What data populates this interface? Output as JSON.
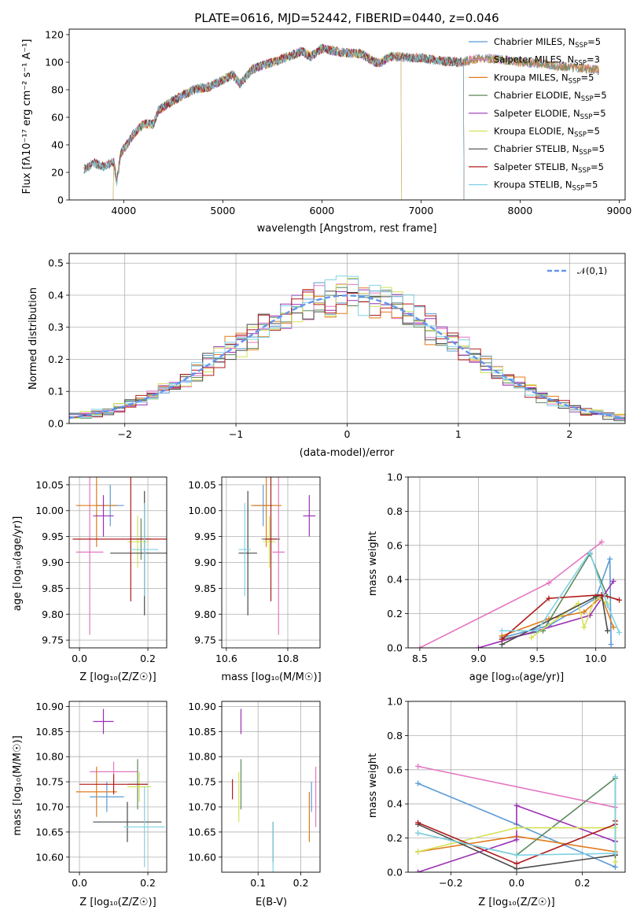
{
  "colors": {
    "Chabrier MILES": "#5b9bd5",
    "Salpeter MILES": "#e377c2",
    "Kroupa MILES": "#e07b1a",
    "Chabrier ELODIE": "#5e8a5e",
    "Salpeter ELODIE": "#9b30b5",
    "Kroupa ELODIE": "#d4e157",
    "Chabrier STELIB": "#4a4a4a",
    "Salpeter STELIB": "#b01c1c",
    "Kroupa STELIB": "#7fd3e3",
    "gauss": "#6495ed"
  },
  "chart_data": [
    {
      "id": "spectrum",
      "type": "line",
      "title": "PLATE=0616, MJD=52442, FIBERID=0440, z=0.046",
      "xlabel": "wavelength [Angstrom, rest frame]",
      "ylabel": "Flux [fλ10⁻¹⁷ erg cm⁻² s⁻¹ A⁻¹]",
      "xlim": [
        3450,
        9060
      ],
      "ylim": [
        0,
        124
      ],
      "xticks": [
        4000,
        5000,
        6000,
        7000,
        8000,
        9000
      ],
      "yticks": [
        0,
        20,
        40,
        60,
        80,
        100,
        120
      ],
      "grid": false,
      "legend_position": "top-right",
      "legend": [
        {
          "model": "Chabrier MILES",
          "label": "Chabrier MILES, N",
          "sub": "SSP",
          "n": "=5"
        },
        {
          "model": "Salpeter MILES",
          "label": "Salpeter MILES, N",
          "sub": "SSP",
          "n": "=3"
        },
        {
          "model": "Kroupa MILES",
          "label": "Kroupa MILES, N",
          "sub": "SSP",
          "n": "=5"
        },
        {
          "model": "Chabrier ELODIE",
          "label": "Chabrier ELODIE, N",
          "sub": "SSP",
          "n": "=5"
        },
        {
          "model": "Salpeter ELODIE",
          "label": "Salpeter ELODIE, N",
          "sub": "SSP",
          "n": "=5"
        },
        {
          "model": "Kroupa ELODIE",
          "label": "Kroupa ELODIE, N",
          "sub": "SSP",
          "n": "=5"
        },
        {
          "model": "Chabrier STELIB",
          "label": "Chabrier STELIB, N",
          "sub": "SSP",
          "n": "=5"
        },
        {
          "model": "Salpeter STELIB",
          "label": "Salpeter STELIB, N",
          "sub": "SSP",
          "n": "=5"
        },
        {
          "model": "Kroupa STELIB",
          "label": "Kroupa STELIB, N",
          "sub": "SSP",
          "n": "=5"
        }
      ],
      "continuum": [
        [
          3600,
          22
        ],
        [
          3700,
          27
        ],
        [
          3800,
          24
        ],
        [
          3900,
          28
        ],
        [
          3930,
          13
        ],
        [
          3970,
          34
        ],
        [
          4050,
          42
        ],
        [
          4100,
          48
        ],
        [
          4200,
          55
        ],
        [
          4300,
          55
        ],
        [
          4350,
          65
        ],
        [
          4500,
          72
        ],
        [
          4700,
          80
        ],
        [
          4860,
          82
        ],
        [
          5000,
          87
        ],
        [
          5100,
          91
        ],
        [
          5175,
          84
        ],
        [
          5300,
          95
        ],
        [
          5500,
          100
        ],
        [
          5700,
          105
        ],
        [
          5800,
          108
        ],
        [
          5890,
          104
        ],
        [
          6000,
          110
        ],
        [
          6200,
          107
        ],
        [
          6400,
          106
        ],
        [
          6563,
          99
        ],
        [
          6700,
          104
        ],
        [
          7000,
          103
        ],
        [
          7200,
          101
        ],
        [
          7400,
          100
        ],
        [
          7600,
          103
        ],
        [
          7800,
          102
        ],
        [
          8000,
          100
        ],
        [
          8200,
          99
        ],
        [
          8400,
          97
        ],
        [
          8600,
          96
        ],
        [
          8800,
          94
        ]
      ],
      "spectrum_range": [
        3600,
        8800
      ],
      "model_cutoffs": [
        {
          "model": "Kroupa ELODIE",
          "range": [
            3900,
            6800
          ]
        },
        {
          "model": "Salpeter ELODIE",
          "range": [
            3900,
            6800
          ]
        },
        {
          "model": "Chabrier STELIB",
          "range": [
            3600,
            7430
          ]
        },
        {
          "model": "Salpeter STELIB",
          "range": [
            3600,
            7430
          ]
        },
        {
          "model": "Kroupa STELIB",
          "range": [
            3600,
            7430
          ]
        }
      ]
    },
    {
      "id": "residuals",
      "type": "line",
      "xlabel": "(data-model)/error",
      "ylabel": "Normed distribution",
      "xlim": [
        -2.5,
        2.5
      ],
      "ylim": [
        0,
        0.53
      ],
      "xticks": [
        -2,
        -1,
        0,
        1,
        2
      ],
      "yticks": [
        0.0,
        0.1,
        0.2,
        0.3,
        0.4,
        0.5
      ],
      "grid": true,
      "legend_position": "top-right",
      "legend_label": "𝒩(0,1)",
      "bin_edges_start": -2.5,
      "bin_width": 0.1,
      "n_bins": 50,
      "reference": "gaussian mean 0 sigma 1 (dashed)"
    },
    {
      "id": "age-vs-Z",
      "type": "scatter",
      "xlabel": "Z [log₁₀(Z/Z☉)]",
      "ylabel": "age  [log₁₀(age/yr)]",
      "xlim": [
        -0.03,
        0.255
      ],
      "ylim": [
        9.735,
        10.065
      ],
      "xticks": [
        0.0,
        0.2
      ],
      "yticks": [
        9.75,
        9.8,
        9.85,
        9.9,
        9.95,
        10.0,
        10.05
      ],
      "grid": true,
      "points": [
        {
          "model": "Chabrier MILES",
          "x": 0.09,
          "y": 10.01,
          "xerr": 0.04,
          "yerr": 0.04
        },
        {
          "model": "Salpeter MILES",
          "x": 0.03,
          "y": 9.92,
          "xerr": 0.04,
          "yerr": 0.16
        },
        {
          "model": "Kroupa MILES",
          "x": 0.05,
          "y": 10.01,
          "xerr": 0.06,
          "yerr": 0.08
        },
        {
          "model": "Chabrier ELODIE",
          "x": 0.18,
          "y": 9.945,
          "xerr": 0.03,
          "yerr": 0.04
        },
        {
          "model": "Salpeter ELODIE",
          "x": 0.07,
          "y": 9.99,
          "xerr": 0.03,
          "yerr": 0.04
        },
        {
          "model": "Kroupa ELODIE",
          "x": 0.17,
          "y": 9.94,
          "xerr": 0.03,
          "yerr": 0.05
        },
        {
          "model": "Chabrier STELIB",
          "x": 0.19,
          "y": 9.918,
          "xerr": 0.1,
          "yerr": 0.12
        },
        {
          "model": "Salpeter STELIB",
          "x": 0.15,
          "y": 9.945,
          "xerr": 0.17,
          "yerr": 0.12
        },
        {
          "model": "Kroupa STELIB",
          "x": 0.19,
          "y": 9.925,
          "xerr": 0.04,
          "yerr": 0.09
        }
      ]
    },
    {
      "id": "age-vs-mass",
      "type": "scatter",
      "xlabel": "mass [log₁₀(M/M☉)]",
      "ylabel": "",
      "xlim": [
        10.585,
        10.905
      ],
      "ylim": [
        9.735,
        10.065
      ],
      "xticks": [
        10.6,
        10.8
      ],
      "yticks": [
        9.75,
        9.8,
        9.85,
        9.9,
        9.95,
        10.0,
        10.05
      ],
      "grid": true,
      "points": [
        {
          "model": "Chabrier MILES",
          "x": 10.72,
          "y": 10.01,
          "xerr": 0.03,
          "yerr": 0.04
        },
        {
          "model": "Salpeter MILES",
          "x": 10.77,
          "y": 9.92,
          "xerr": 0.02,
          "yerr": 0.16
        },
        {
          "model": "Kroupa MILES",
          "x": 10.73,
          "y": 10.01,
          "xerr": 0.05,
          "yerr": 0.08
        },
        {
          "model": "Chabrier ELODIE",
          "x": 10.745,
          "y": 9.945,
          "xerr": 0.03,
          "yerr": 0.04
        },
        {
          "model": "Salpeter ELODIE",
          "x": 10.87,
          "y": 9.99,
          "xerr": 0.02,
          "yerr": 0.04
        },
        {
          "model": "Kroupa ELODIE",
          "x": 10.74,
          "y": 9.94,
          "xerr": 0.02,
          "yerr": 0.05
        },
        {
          "model": "Chabrier STELIB",
          "x": 10.67,
          "y": 9.918,
          "xerr": 0.03,
          "yerr": 0.12
        },
        {
          "model": "Salpeter STELIB",
          "x": 10.745,
          "y": 9.945,
          "xerr": 0.02,
          "yerr": 0.12
        },
        {
          "model": "Kroupa STELIB",
          "x": 10.66,
          "y": 9.925,
          "xerr": 0.02,
          "yerr": 0.09
        }
      ]
    },
    {
      "id": "mass-weight-vs-age",
      "type": "line",
      "xlabel": "age  [log₁₀(age/yr)]",
      "ylabel": "mass weight",
      "xlim": [
        8.4,
        10.25
      ],
      "ylim": [
        0,
        1
      ],
      "xticks": [
        8.5,
        9.0,
        9.5,
        10.0
      ],
      "yticks": [
        0.0,
        0.2,
        0.4,
        0.6,
        0.8,
        1.0
      ],
      "grid": true,
      "series": [
        {
          "model": "Chabrier MILES",
          "x": [
            9.2,
            9.6,
            10.0,
            10.12,
            10.13
          ],
          "y": [
            0.06,
            0.13,
            0.29,
            0.52,
            0.02
          ]
        },
        {
          "model": "Salpeter MILES",
          "x": [
            8.5,
            9.6,
            10.05
          ],
          "y": [
            0.0,
            0.38,
            0.62
          ]
        },
        {
          "model": "Kroupa MILES",
          "x": [
            9.2,
            9.6,
            9.9,
            10.05,
            10.15
          ],
          "y": [
            0.07,
            0.17,
            0.21,
            0.3,
            0.12
          ]
        },
        {
          "model": "Chabrier ELODIE",
          "x": [
            9.2,
            9.55,
            9.95,
            10.1
          ],
          "y": [
            0.05,
            0.1,
            0.55,
            0.3
          ]
        },
        {
          "model": "Salpeter ELODIE",
          "x": [
            9.0,
            9.95,
            10.15
          ],
          "y": [
            0.0,
            0.19,
            0.39
          ]
        },
        {
          "model": "Kroupa ELODIE",
          "x": [
            9.45,
            9.85,
            9.9,
            10.0,
            10.1
          ],
          "y": [
            0.06,
            0.26,
            0.12,
            0.3,
            0.26
          ]
        },
        {
          "model": "Chabrier STELIB",
          "x": [
            9.2,
            10.0,
            10.05,
            10.1
          ],
          "y": [
            0.02,
            0.3,
            0.31,
            0.1
          ]
        },
        {
          "model": "Salpeter STELIB",
          "x": [
            9.2,
            9.6,
            10.05,
            10.2
          ],
          "y": [
            0.05,
            0.29,
            0.31,
            0.28
          ]
        },
        {
          "model": "Kroupa STELIB",
          "x": [
            9.2,
            9.5,
            9.95,
            10.1,
            10.2
          ],
          "y": [
            0.1,
            0.1,
            0.56,
            0.25,
            0.09
          ]
        }
      ]
    },
    {
      "id": "mass-vs-Z",
      "type": "scatter",
      "xlabel": "Z [log₁₀(Z/Z☉)]",
      "ylabel": "mass [log₁₀(M/M☉)]",
      "xlim": [
        -0.03,
        0.255
      ],
      "ylim": [
        10.57,
        10.91
      ],
      "xticks": [
        0.0,
        0.2
      ],
      "yticks": [
        10.6,
        10.65,
        10.7,
        10.75,
        10.8,
        10.85,
        10.9
      ],
      "grid": true,
      "points": [
        {
          "model": "Chabrier MILES",
          "x": 0.08,
          "y": 10.72,
          "xerr": 0.05,
          "yerr": 0.03
        },
        {
          "model": "Salpeter MILES",
          "x": 0.1,
          "y": 10.77,
          "xerr": 0.07,
          "yerr": 0.02
        },
        {
          "model": "Kroupa MILES",
          "x": 0.05,
          "y": 10.73,
          "xerr": 0.06,
          "yerr": 0.05
        },
        {
          "model": "Chabrier ELODIE",
          "x": 0.17,
          "y": 10.745,
          "xerr": 0.03,
          "yerr": 0.05
        },
        {
          "model": "Salpeter ELODIE",
          "x": 0.07,
          "y": 10.87,
          "xerr": 0.03,
          "yerr": 0.025
        },
        {
          "model": "Kroupa ELODIE",
          "x": 0.175,
          "y": 10.74,
          "xerr": 0.035,
          "yerr": 0.03
        },
        {
          "model": "Chabrier STELIB",
          "x": 0.14,
          "y": 10.67,
          "xerr": 0.1,
          "yerr": 0.04
        },
        {
          "model": "Salpeter STELIB",
          "x": 0.1,
          "y": 10.745,
          "xerr": 0.1,
          "yerr": 0.02
        },
        {
          "model": "Kroupa STELIB",
          "x": 0.19,
          "y": 10.66,
          "xerr": 0.06,
          "yerr": 0.08
        }
      ]
    },
    {
      "id": "mass-vs-EBV",
      "type": "scatter",
      "xlabel": "E(B-V)",
      "ylabel": "",
      "xlim": [
        0.015,
        0.245
      ],
      "ylim": [
        10.57,
        10.91
      ],
      "xticks": [
        0.1,
        0.2
      ],
      "yticks": [
        10.6,
        10.65,
        10.7,
        10.75,
        10.8,
        10.85,
        10.9
      ],
      "grid": true,
      "points": [
        {
          "model": "Chabrier MILES",
          "x": 0.225,
          "y": 10.72,
          "xerr": 0.0,
          "yerr": 0.03
        },
        {
          "model": "Salpeter MILES",
          "x": 0.235,
          "y": 10.72,
          "xerr": 0.0,
          "yerr": 0.06
        },
        {
          "model": "Kroupa MILES",
          "x": 0.22,
          "y": 10.68,
          "xerr": 0.0,
          "yerr": 0.05
        },
        {
          "model": "Chabrier ELODIE",
          "x": 0.06,
          "y": 10.745,
          "xerr": 0.0,
          "yerr": 0.05
        },
        {
          "model": "Salpeter ELODIE",
          "x": 0.06,
          "y": 10.87,
          "xerr": 0.0,
          "yerr": 0.025
        },
        {
          "model": "Kroupa ELODIE",
          "x": 0.055,
          "y": 10.72,
          "xerr": 0.0,
          "yerr": 0.05
        },
        {
          "model": "Chabrier STELIB",
          "x": 0.135,
          "y": 10.63,
          "xerr": 0.0,
          "yerr": 0.04
        },
        {
          "model": "Salpeter STELIB",
          "x": 0.04,
          "y": 10.735,
          "xerr": 0.0,
          "yerr": 0.02
        },
        {
          "model": "Kroupa STELIB",
          "x": 0.135,
          "y": 10.62,
          "xerr": 0.0,
          "yerr": 0.05
        }
      ]
    },
    {
      "id": "mass-weight-vs-Z",
      "type": "line",
      "xlabel": "Z [log₁₀(Z/Z☉)]",
      "ylabel": "mass weight",
      "xlim": [
        -0.33,
        0.33
      ],
      "ylim": [
        0,
        1
      ],
      "xticks": [
        -0.2,
        0.0,
        0.2
      ],
      "yticks": [
        0.0,
        0.2,
        0.4,
        0.6,
        0.8,
        1.0
      ],
      "grid": true,
      "series": [
        {
          "model": "Chabrier MILES",
          "x": [
            -0.3,
            0.0,
            0.3,
            0.3
          ],
          "y": [
            0.52,
            0.28,
            0.03,
            0.18
          ]
        },
        {
          "model": "Salpeter MILES",
          "x": [
            -0.3,
            0.3
          ],
          "y": [
            0.62,
            0.38
          ]
        },
        {
          "model": "Kroupa MILES",
          "x": [
            -0.3,
            0.0,
            0.3,
            0.3
          ],
          "y": [
            0.12,
            0.21,
            0.12,
            0.3
          ]
        },
        {
          "model": "Chabrier ELODIE",
          "x": [
            -0.3,
            0.0,
            0.3,
            0.3
          ],
          "y": [
            0.23,
            0.1,
            0.55,
            0.1
          ]
        },
        {
          "model": "Salpeter ELODIE",
          "x": [
            -0.3,
            0.0,
            0.0,
            0.3
          ],
          "y": [
            0.0,
            0.19,
            0.39,
            0.18
          ]
        },
        {
          "model": "Kroupa ELODIE",
          "x": [
            -0.3,
            0.0,
            0.3,
            0.3
          ],
          "y": [
            0.12,
            0.26,
            0.26,
            0.06
          ]
        },
        {
          "model": "Chabrier STELIB",
          "x": [
            -0.3,
            0.0,
            0.3
          ],
          "y": [
            0.28,
            0.02,
            0.1
          ]
        },
        {
          "model": "Salpeter STELIB",
          "x": [
            -0.3,
            0.0,
            0.3,
            0.3
          ],
          "y": [
            0.29,
            0.05,
            0.28,
            0.3
          ]
        },
        {
          "model": "Kroupa STELIB",
          "x": [
            -0.3,
            0.0,
            0.3,
            0.3
          ],
          "y": [
            0.23,
            0.1,
            0.11,
            0.56
          ]
        }
      ]
    }
  ]
}
